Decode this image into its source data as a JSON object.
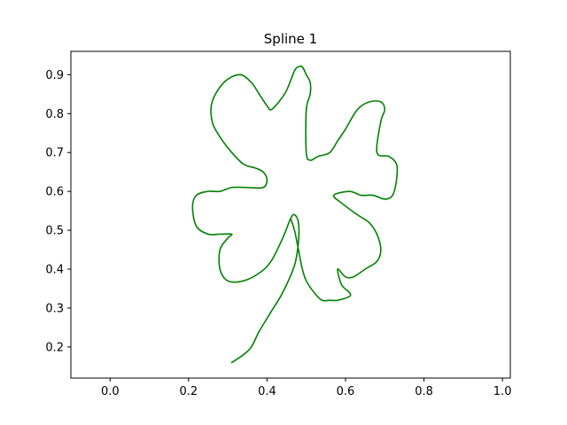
{
  "chart_data": {
    "type": "line",
    "title": "Spline 1",
    "xlabel": "",
    "ylabel": "",
    "xlim": [
      -0.1,
      1.02
    ],
    "ylim": [
      0.12,
      0.96
    ],
    "x_ticks": [
      0.0,
      0.2,
      0.4,
      0.6,
      0.8,
      1.0
    ],
    "x_tick_labels": [
      "0.0",
      "0.2",
      "0.4",
      "0.6",
      "0.8",
      "1.0"
    ],
    "y_ticks": [
      0.2,
      0.3,
      0.4,
      0.5,
      0.6,
      0.7,
      0.8,
      0.9
    ],
    "y_tick_labels": [
      "0.2",
      "0.3",
      "0.4",
      "0.5",
      "0.6",
      "0.7",
      "0.8",
      "0.9"
    ],
    "grid": false,
    "legend": "none",
    "series": [
      {
        "color": "#008000",
        "x": [
          0.31,
          0.34,
          0.36,
          0.38,
          0.41,
          0.44,
          0.47,
          0.48,
          0.48,
          0.47,
          0.46,
          0.44,
          0.41,
          0.38,
          0.34,
          0.3,
          0.28,
          0.28,
          0.3,
          0.31,
          0.28,
          0.25,
          0.22,
          0.21,
          0.22,
          0.25,
          0.28,
          0.31,
          0.35,
          0.39,
          0.4,
          0.39,
          0.37,
          0.34,
          0.31,
          0.28,
          0.26,
          0.26,
          0.29,
          0.33,
          0.36,
          0.38,
          0.4,
          0.41,
          0.43,
          0.45,
          0.47,
          0.48,
          0.49,
          0.5,
          0.51,
          0.51,
          0.5,
          0.5,
          0.51,
          0.53,
          0.56,
          0.58,
          0.6,
          0.63,
          0.66,
          0.69,
          0.7,
          0.69,
          0.68,
          0.71,
          0.73,
          0.73,
          0.72,
          0.7,
          0.67,
          0.64,
          0.61,
          0.57,
          0.59,
          0.63,
          0.66,
          0.68,
          0.69,
          0.68,
          0.65,
          0.62,
          0.6,
          0.58,
          0.59,
          0.61,
          0.61,
          0.58,
          0.56,
          0.54,
          0.52,
          0.5,
          0.49,
          0.48,
          0.47,
          0.46
        ],
        "y": [
          0.16,
          0.18,
          0.2,
          0.24,
          0.29,
          0.34,
          0.41,
          0.47,
          0.52,
          0.54,
          0.53,
          0.48,
          0.42,
          0.39,
          0.37,
          0.37,
          0.4,
          0.45,
          0.48,
          0.49,
          0.49,
          0.49,
          0.51,
          0.56,
          0.59,
          0.6,
          0.6,
          0.61,
          0.61,
          0.61,
          0.63,
          0.65,
          0.66,
          0.67,
          0.7,
          0.74,
          0.78,
          0.83,
          0.88,
          0.9,
          0.88,
          0.85,
          0.82,
          0.81,
          0.83,
          0.86,
          0.91,
          0.92,
          0.92,
          0.9,
          0.88,
          0.85,
          0.81,
          0.7,
          0.68,
          0.69,
          0.7,
          0.73,
          0.76,
          0.81,
          0.83,
          0.83,
          0.81,
          0.78,
          0.7,
          0.69,
          0.67,
          0.63,
          0.59,
          0.58,
          0.59,
          0.59,
          0.6,
          0.59,
          0.57,
          0.54,
          0.52,
          0.49,
          0.45,
          0.42,
          0.4,
          0.38,
          0.38,
          0.4,
          0.36,
          0.34,
          0.33,
          0.32,
          0.32,
          0.32,
          0.34,
          0.37,
          0.4,
          0.45,
          0.5,
          0.53
        ]
      }
    ]
  }
}
